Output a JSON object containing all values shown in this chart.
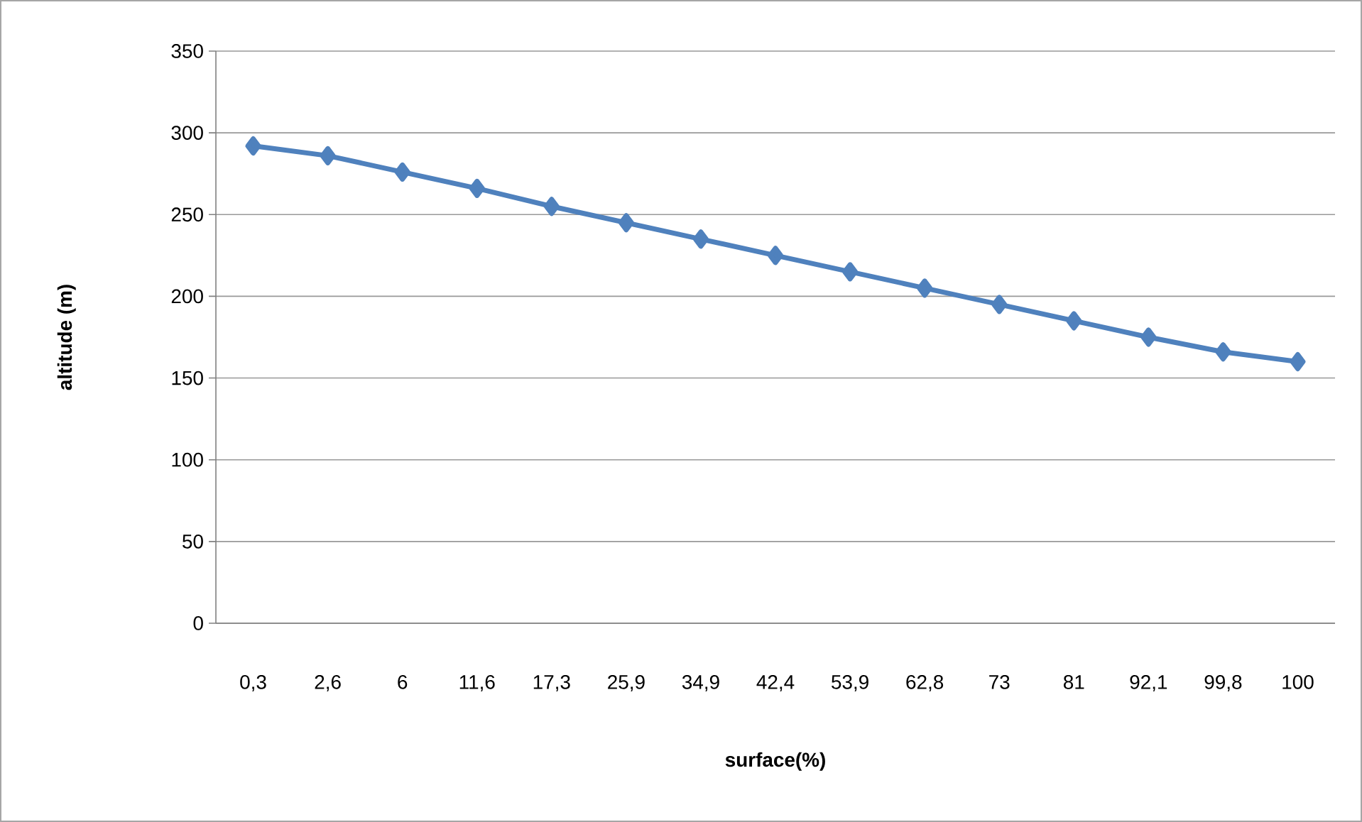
{
  "chart_data": {
    "type": "line",
    "xlabel": "surface(%)",
    "ylabel": "altitude (m)",
    "categories": [
      "0,3",
      "2,6",
      "6",
      "11,6",
      "17,3",
      "25,9",
      "34,9",
      "42,4",
      "53,9",
      "62,8",
      "73",
      "81",
      "92,1",
      "99,8",
      "100"
    ],
    "series": [
      {
        "color": "#4f81bd",
        "values": [
          292,
          286,
          276,
          266,
          255,
          245,
          235,
          225,
          215,
          205,
          195,
          185,
          175,
          166,
          160
        ]
      }
    ],
    "ylim": [
      0,
      350
    ],
    "yticks": [
      0,
      50,
      100,
      150,
      200,
      250,
      300,
      350
    ],
    "grid": "y",
    "marker": "diamond",
    "line_style": "solid"
  }
}
